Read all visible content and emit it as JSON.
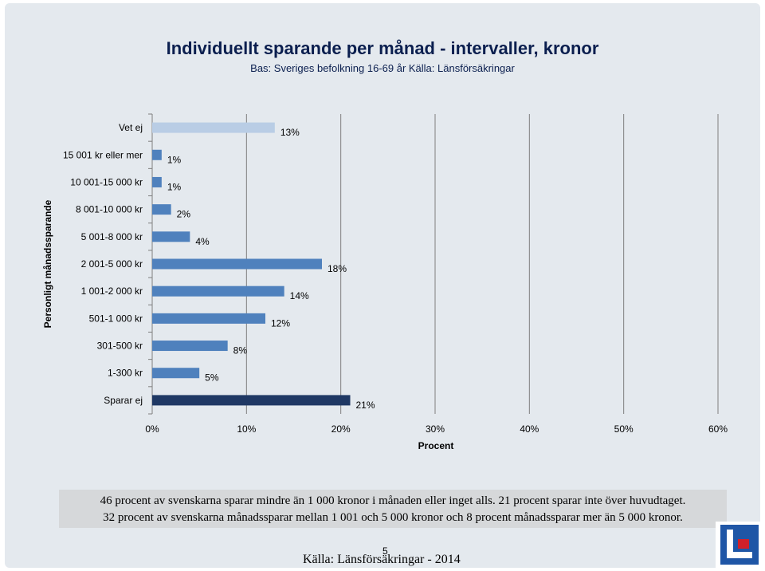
{
  "title": "Individuellt sparande per månad - intervaller, kronor",
  "subtitle": "Bas: Sveriges befolkning 16-69 år Källa: Länsförsäkringar",
  "note_line1": "46 procent av svenskarna sparar mindre än 1 000 kronor i månaden eller inget alls. 21 procent sparar inte över huvudtaget.",
  "note_line2": "32 procent av svenskarna månadssparar mellan 1 001 och 5 000 kronor och 8 procent månadssparar mer än 5 000 kronor.",
  "source": "Källa: Länsförsäkringar - 2014",
  "page_number": "5",
  "logo_icon": "lansforsakringar-logo-icon",
  "colors": {
    "default_bar": "#4f81bd",
    "vet_ej_bar": "#b9cde5",
    "sparar_ej_bar": "#1f3864",
    "grid": "#7f7f7f"
  },
  "chart_data": {
    "type": "bar",
    "orientation": "horizontal",
    "categories": [
      "Vet ej",
      "15 001 kr eller mer",
      "10 001-15 000 kr",
      "8 001-10 000 kr",
      "5 001-8 000 kr",
      "2 001-5 000 kr",
      "1 001-2 000 kr",
      "501-1 000 kr",
      "301-500 kr",
      "1-300 kr",
      "Sparar ej"
    ],
    "values": [
      13,
      1,
      1,
      2,
      4,
      18,
      14,
      12,
      8,
      5,
      21
    ],
    "value_labels": [
      "13%",
      "1%",
      "1%",
      "2%",
      "4%",
      "18%",
      "14%",
      "12%",
      "8%",
      "5%",
      "21%"
    ],
    "xlabel": "Procent",
    "ylabel": "Personligt månadssparande",
    "xlim": [
      0,
      60
    ],
    "xticks": [
      0,
      10,
      20,
      30,
      40,
      50,
      60
    ],
    "xtick_labels": [
      "0%",
      "10%",
      "20%",
      "30%",
      "40%",
      "50%",
      "60%"
    ],
    "grid": "vertical",
    "legend": "none"
  }
}
